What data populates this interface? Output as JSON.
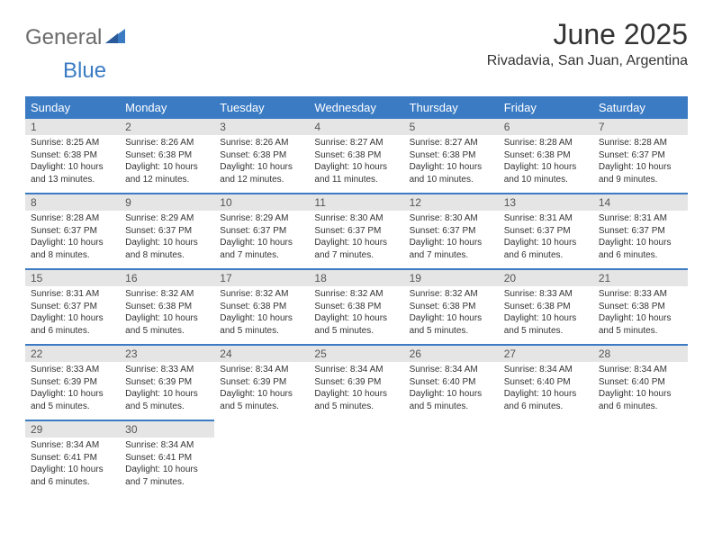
{
  "logo": {
    "text_general": "General",
    "text_blue": "Blue"
  },
  "header": {
    "month_title": "June 2025",
    "location": "Rivadavia, San Juan, Argentina"
  },
  "calendar": {
    "header_bg": "#3b7bc4",
    "header_fg": "#ffffff",
    "daynum_bg": "#e5e5e5",
    "border_color": "#3b7bc4",
    "day_names": [
      "Sunday",
      "Monday",
      "Tuesday",
      "Wednesday",
      "Thursday",
      "Friday",
      "Saturday"
    ],
    "weeks": [
      [
        {
          "num": "1",
          "sunrise": "Sunrise: 8:25 AM",
          "sunset": "Sunset: 6:38 PM",
          "daylight": "Daylight: 10 hours and 13 minutes."
        },
        {
          "num": "2",
          "sunrise": "Sunrise: 8:26 AM",
          "sunset": "Sunset: 6:38 PM",
          "daylight": "Daylight: 10 hours and 12 minutes."
        },
        {
          "num": "3",
          "sunrise": "Sunrise: 8:26 AM",
          "sunset": "Sunset: 6:38 PM",
          "daylight": "Daylight: 10 hours and 12 minutes."
        },
        {
          "num": "4",
          "sunrise": "Sunrise: 8:27 AM",
          "sunset": "Sunset: 6:38 PM",
          "daylight": "Daylight: 10 hours and 11 minutes."
        },
        {
          "num": "5",
          "sunrise": "Sunrise: 8:27 AM",
          "sunset": "Sunset: 6:38 PM",
          "daylight": "Daylight: 10 hours and 10 minutes."
        },
        {
          "num": "6",
          "sunrise": "Sunrise: 8:28 AM",
          "sunset": "Sunset: 6:38 PM",
          "daylight": "Daylight: 10 hours and 10 minutes."
        },
        {
          "num": "7",
          "sunrise": "Sunrise: 8:28 AM",
          "sunset": "Sunset: 6:37 PM",
          "daylight": "Daylight: 10 hours and 9 minutes."
        }
      ],
      [
        {
          "num": "8",
          "sunrise": "Sunrise: 8:28 AM",
          "sunset": "Sunset: 6:37 PM",
          "daylight": "Daylight: 10 hours and 8 minutes."
        },
        {
          "num": "9",
          "sunrise": "Sunrise: 8:29 AM",
          "sunset": "Sunset: 6:37 PM",
          "daylight": "Daylight: 10 hours and 8 minutes."
        },
        {
          "num": "10",
          "sunrise": "Sunrise: 8:29 AM",
          "sunset": "Sunset: 6:37 PM",
          "daylight": "Daylight: 10 hours and 7 minutes."
        },
        {
          "num": "11",
          "sunrise": "Sunrise: 8:30 AM",
          "sunset": "Sunset: 6:37 PM",
          "daylight": "Daylight: 10 hours and 7 minutes."
        },
        {
          "num": "12",
          "sunrise": "Sunrise: 8:30 AM",
          "sunset": "Sunset: 6:37 PM",
          "daylight": "Daylight: 10 hours and 7 minutes."
        },
        {
          "num": "13",
          "sunrise": "Sunrise: 8:31 AM",
          "sunset": "Sunset: 6:37 PM",
          "daylight": "Daylight: 10 hours and 6 minutes."
        },
        {
          "num": "14",
          "sunrise": "Sunrise: 8:31 AM",
          "sunset": "Sunset: 6:37 PM",
          "daylight": "Daylight: 10 hours and 6 minutes."
        }
      ],
      [
        {
          "num": "15",
          "sunrise": "Sunrise: 8:31 AM",
          "sunset": "Sunset: 6:37 PM",
          "daylight": "Daylight: 10 hours and 6 minutes."
        },
        {
          "num": "16",
          "sunrise": "Sunrise: 8:32 AM",
          "sunset": "Sunset: 6:38 PM",
          "daylight": "Daylight: 10 hours and 5 minutes."
        },
        {
          "num": "17",
          "sunrise": "Sunrise: 8:32 AM",
          "sunset": "Sunset: 6:38 PM",
          "daylight": "Daylight: 10 hours and 5 minutes."
        },
        {
          "num": "18",
          "sunrise": "Sunrise: 8:32 AM",
          "sunset": "Sunset: 6:38 PM",
          "daylight": "Daylight: 10 hours and 5 minutes."
        },
        {
          "num": "19",
          "sunrise": "Sunrise: 8:32 AM",
          "sunset": "Sunset: 6:38 PM",
          "daylight": "Daylight: 10 hours and 5 minutes."
        },
        {
          "num": "20",
          "sunrise": "Sunrise: 8:33 AM",
          "sunset": "Sunset: 6:38 PM",
          "daylight": "Daylight: 10 hours and 5 minutes."
        },
        {
          "num": "21",
          "sunrise": "Sunrise: 8:33 AM",
          "sunset": "Sunset: 6:38 PM",
          "daylight": "Daylight: 10 hours and 5 minutes."
        }
      ],
      [
        {
          "num": "22",
          "sunrise": "Sunrise: 8:33 AM",
          "sunset": "Sunset: 6:39 PM",
          "daylight": "Daylight: 10 hours and 5 minutes."
        },
        {
          "num": "23",
          "sunrise": "Sunrise: 8:33 AM",
          "sunset": "Sunset: 6:39 PM",
          "daylight": "Daylight: 10 hours and 5 minutes."
        },
        {
          "num": "24",
          "sunrise": "Sunrise: 8:34 AM",
          "sunset": "Sunset: 6:39 PM",
          "daylight": "Daylight: 10 hours and 5 minutes."
        },
        {
          "num": "25",
          "sunrise": "Sunrise: 8:34 AM",
          "sunset": "Sunset: 6:39 PM",
          "daylight": "Daylight: 10 hours and 5 minutes."
        },
        {
          "num": "26",
          "sunrise": "Sunrise: 8:34 AM",
          "sunset": "Sunset: 6:40 PM",
          "daylight": "Daylight: 10 hours and 5 minutes."
        },
        {
          "num": "27",
          "sunrise": "Sunrise: 8:34 AM",
          "sunset": "Sunset: 6:40 PM",
          "daylight": "Daylight: 10 hours and 6 minutes."
        },
        {
          "num": "28",
          "sunrise": "Sunrise: 8:34 AM",
          "sunset": "Sunset: 6:40 PM",
          "daylight": "Daylight: 10 hours and 6 minutes."
        }
      ],
      [
        {
          "num": "29",
          "sunrise": "Sunrise: 8:34 AM",
          "sunset": "Sunset: 6:41 PM",
          "daylight": "Daylight: 10 hours and 6 minutes."
        },
        {
          "num": "30",
          "sunrise": "Sunrise: 8:34 AM",
          "sunset": "Sunset: 6:41 PM",
          "daylight": "Daylight: 10 hours and 7 minutes."
        },
        null,
        null,
        null,
        null,
        null
      ]
    ]
  }
}
